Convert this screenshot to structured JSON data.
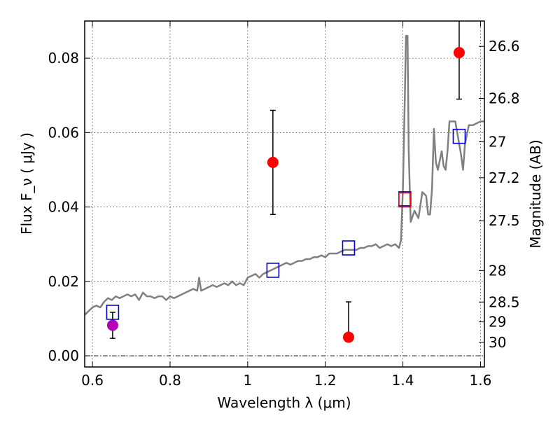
{
  "chart_data": {
    "type": "scatter",
    "xlabel": "Wavelength  λ (μm)",
    "ylabel": "Flux  F_ν  ( μJy )",
    "y2label": "Magnitude (AB)",
    "xlim": [
      0.58,
      1.61
    ],
    "ylim": [
      -0.003,
      0.09
    ],
    "grid": true,
    "x_ticks": [
      {
        "value": 0.6,
        "label": "0.6"
      },
      {
        "value": 0.8,
        "label": "0.8"
      },
      {
        "value": 1.0,
        "label": "1"
      },
      {
        "value": 1.2,
        "label": "1.2"
      },
      {
        "value": 1.4,
        "label": "1.4"
      },
      {
        "value": 1.6,
        "label": "1.6"
      }
    ],
    "y_ticks": [
      {
        "value": 0.0,
        "label": "0.00"
      },
      {
        "value": 0.02,
        "label": "0.02"
      },
      {
        "value": 0.04,
        "label": "0.04"
      },
      {
        "value": 0.06,
        "label": "0.06"
      },
      {
        "value": 0.08,
        "label": "0.08"
      }
    ],
    "y2_ticks": [
      {
        "mag": 26.6,
        "label": "26.6"
      },
      {
        "mag": 26.8,
        "label": "26.8"
      },
      {
        "mag": 27.0,
        "label": "27"
      },
      {
        "mag": 27.2,
        "label": "27.2"
      },
      {
        "mag": 27.5,
        "label": "27.5"
      },
      {
        "mag": 28.0,
        "label": "28"
      },
      {
        "mag": 28.5,
        "label": "28.5"
      },
      {
        "mag": 29.0,
        "label": "29"
      },
      {
        "mag": 30.0,
        "label": "30"
      }
    ],
    "series": [
      {
        "type": "line",
        "color": "#808080",
        "points": [
          [
            0.58,
            0.011
          ],
          [
            0.59,
            0.012
          ],
          [
            0.6,
            0.013
          ],
          [
            0.61,
            0.0135
          ],
          [
            0.62,
            0.013
          ],
          [
            0.63,
            0.0145
          ],
          [
            0.64,
            0.0155
          ],
          [
            0.65,
            0.015
          ],
          [
            0.66,
            0.016
          ],
          [
            0.67,
            0.0155
          ],
          [
            0.68,
            0.016
          ],
          [
            0.69,
            0.0165
          ],
          [
            0.7,
            0.016
          ],
          [
            0.71,
            0.0165
          ],
          [
            0.72,
            0.015
          ],
          [
            0.73,
            0.017
          ],
          [
            0.74,
            0.016
          ],
          [
            0.75,
            0.016
          ],
          [
            0.76,
            0.0155
          ],
          [
            0.77,
            0.016
          ],
          [
            0.78,
            0.016
          ],
          [
            0.79,
            0.015
          ],
          [
            0.8,
            0.016
          ],
          [
            0.81,
            0.0155
          ],
          [
            0.82,
            0.016
          ],
          [
            0.83,
            0.0165
          ],
          [
            0.84,
            0.017
          ],
          [
            0.85,
            0.0175
          ],
          [
            0.86,
            0.018
          ],
          [
            0.87,
            0.0175
          ],
          [
            0.875,
            0.021
          ],
          [
            0.88,
            0.0175
          ],
          [
            0.89,
            0.018
          ],
          [
            0.9,
            0.0185
          ],
          [
            0.91,
            0.019
          ],
          [
            0.92,
            0.0185
          ],
          [
            0.93,
            0.019
          ],
          [
            0.94,
            0.0195
          ],
          [
            0.95,
            0.019
          ],
          [
            0.96,
            0.02
          ],
          [
            0.97,
            0.019
          ],
          [
            0.98,
            0.0195
          ],
          [
            0.99,
            0.019
          ],
          [
            1.0,
            0.021
          ],
          [
            1.01,
            0.0215
          ],
          [
            1.02,
            0.022
          ],
          [
            1.03,
            0.021
          ],
          [
            1.04,
            0.022
          ],
          [
            1.05,
            0.0225
          ],
          [
            1.06,
            0.023
          ],
          [
            1.07,
            0.0235
          ],
          [
            1.08,
            0.024
          ],
          [
            1.09,
            0.0245
          ],
          [
            1.1,
            0.025
          ],
          [
            1.11,
            0.0245
          ],
          [
            1.12,
            0.025
          ],
          [
            1.13,
            0.0255
          ],
          [
            1.14,
            0.0255
          ],
          [
            1.15,
            0.026
          ],
          [
            1.16,
            0.026
          ],
          [
            1.17,
            0.0265
          ],
          [
            1.18,
            0.0265
          ],
          [
            1.19,
            0.027
          ],
          [
            1.2,
            0.0265
          ],
          [
            1.21,
            0.0275
          ],
          [
            1.22,
            0.0275
          ],
          [
            1.23,
            0.0275
          ],
          [
            1.24,
            0.028
          ],
          [
            1.25,
            0.0285
          ],
          [
            1.26,
            0.0285
          ],
          [
            1.27,
            0.0285
          ],
          [
            1.28,
            0.0285
          ],
          [
            1.29,
            0.029
          ],
          [
            1.3,
            0.029
          ],
          [
            1.31,
            0.0295
          ],
          [
            1.32,
            0.0295
          ],
          [
            1.33,
            0.03
          ],
          [
            1.34,
            0.029
          ],
          [
            1.35,
            0.0295
          ],
          [
            1.36,
            0.03
          ],
          [
            1.37,
            0.0295
          ],
          [
            1.38,
            0.03
          ],
          [
            1.39,
            0.029
          ],
          [
            1.395,
            0.031
          ],
          [
            1.4,
            0.045
          ],
          [
            1.405,
            0.07
          ],
          [
            1.408,
            0.086
          ],
          [
            1.412,
            0.086
          ],
          [
            1.415,
            0.055
          ],
          [
            1.42,
            0.036
          ],
          [
            1.43,
            0.039
          ],
          [
            1.44,
            0.037
          ],
          [
            1.45,
            0.044
          ],
          [
            1.46,
            0.043
          ],
          [
            1.465,
            0.038
          ],
          [
            1.47,
            0.038
          ],
          [
            1.475,
            0.045
          ],
          [
            1.48,
            0.061
          ],
          [
            1.485,
            0.052
          ],
          [
            1.49,
            0.05
          ],
          [
            1.5,
            0.055
          ],
          [
            1.505,
            0.051
          ],
          [
            1.51,
            0.05
          ],
          [
            1.515,
            0.055
          ],
          [
            1.52,
            0.063
          ],
          [
            1.53,
            0.063
          ],
          [
            1.535,
            0.063
          ],
          [
            1.54,
            0.06
          ],
          [
            1.55,
            0.054
          ],
          [
            1.555,
            0.05
          ],
          [
            1.56,
            0.057
          ],
          [
            1.57,
            0.062
          ],
          [
            1.58,
            0.062
          ],
          [
            1.59,
            0.0625
          ],
          [
            1.6,
            0.063
          ],
          [
            1.61,
            0.063
          ]
        ]
      },
      {
        "type": "points",
        "marker": "circle",
        "color": "#ff0000",
        "points": [
          {
            "x": 1.065,
            "y": 0.052,
            "yerr_lo": 0.014,
            "yerr_hi": 0.014
          },
          {
            "x": 1.26,
            "y": 0.005,
            "yerr_lo": 0.0,
            "yerr_hi": 0.0095
          },
          {
            "x": 1.545,
            "y": 0.0815,
            "yerr_lo": 0.0125,
            "yerr_hi": 0.0125
          }
        ]
      },
      {
        "type": "points",
        "marker": "circle",
        "color": "#b400b4",
        "points": [
          {
            "x": 0.652,
            "y": 0.0082,
            "yerr_lo": 0.0035,
            "yerr_hi": 0.0035
          }
        ]
      },
      {
        "type": "points",
        "marker": "square-open",
        "color": "#0000cc",
        "points": [
          {
            "x": 0.652,
            "y": 0.0117
          },
          {
            "x": 1.065,
            "y": 0.023
          },
          {
            "x": 1.26,
            "y": 0.029
          },
          {
            "x": 1.405,
            "y": 0.0422
          },
          {
            "x": 1.545,
            "y": 0.059
          }
        ]
      },
      {
        "type": "points",
        "marker": "square-open",
        "color": "#ff0000",
        "points": [
          {
            "x": 1.405,
            "y": 0.0419
          }
        ]
      }
    ]
  }
}
